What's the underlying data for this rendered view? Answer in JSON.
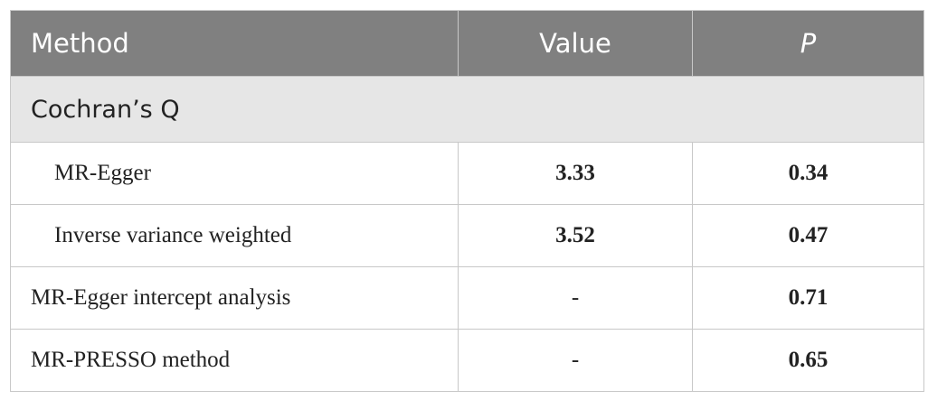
{
  "table": {
    "header": [
      "Method",
      "Value",
      "P"
    ],
    "section": "Cochran’s Q",
    "rows": [
      [
        "MR-Egger",
        "3.33",
        "0.34"
      ],
      [
        "Inverse variance weighted",
        "3.52",
        "0.47"
      ],
      [
        "MR-Egger intercept analysis",
        "-",
        "0.71"
      ],
      [
        "MR-PRESSO method",
        "-",
        "0.65"
      ]
    ]
  }
}
